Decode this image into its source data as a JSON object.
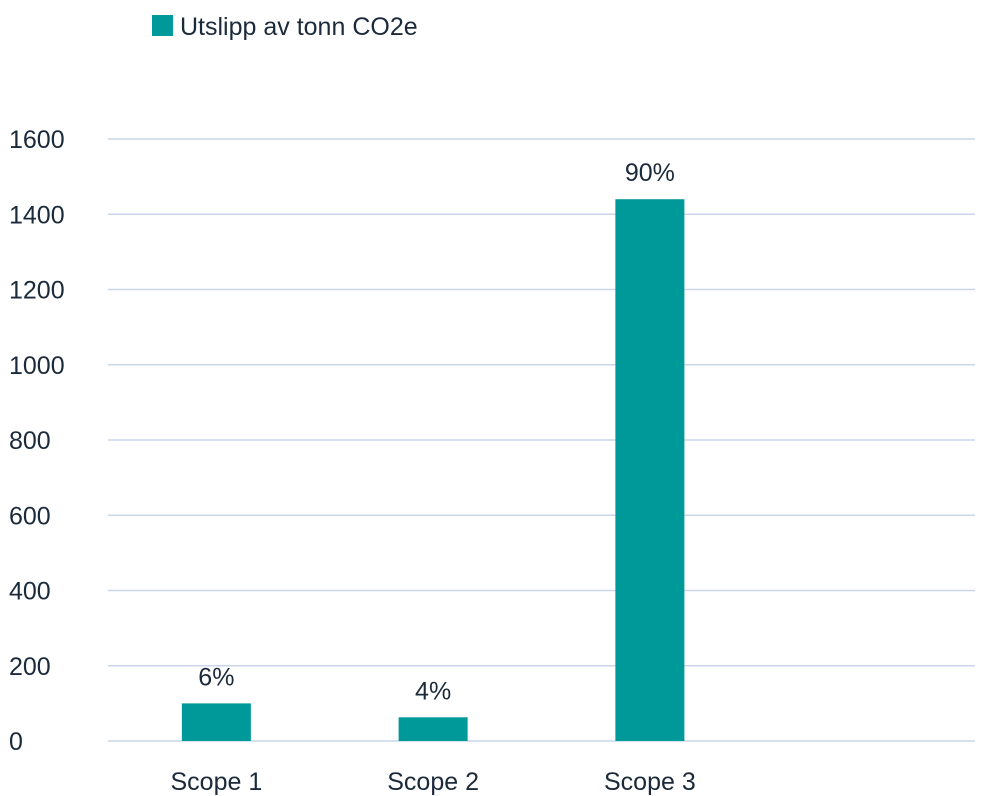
{
  "chart_data": {
    "type": "bar",
    "categories": [
      "Scope 1",
      "Scope 2",
      "Scope 3",
      ""
    ],
    "series": [
      {
        "name": "Utslipp av tonn CO2e",
        "values": [
          100,
          63,
          1440,
          null
        ],
        "data_labels": [
          "6%",
          "4%",
          "90%",
          ""
        ],
        "color": "#009999"
      }
    ],
    "ylim": [
      0,
      1600
    ],
    "yticks": [
      0,
      200,
      400,
      600,
      800,
      1000,
      1200,
      1400,
      1600
    ],
    "grid": true,
    "legend_position": "top-left",
    "title": "",
    "xlabel": "",
    "ylabel": ""
  }
}
